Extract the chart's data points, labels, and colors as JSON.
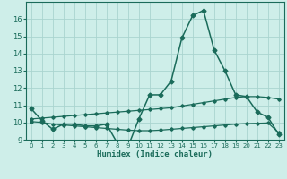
{
  "xlabel": "Humidex (Indice chaleur)",
  "bg_color": "#ceeee9",
  "grid_color": "#aad4cf",
  "line_color": "#1a6b5a",
  "xlim": [
    -0.5,
    23.5
  ],
  "ylim": [
    9,
    17
  ],
  "xticks": [
    0,
    1,
    2,
    3,
    4,
    5,
    6,
    7,
    8,
    9,
    10,
    11,
    12,
    13,
    14,
    15,
    16,
    17,
    18,
    19,
    20,
    21,
    22,
    23
  ],
  "yticks": [
    9,
    10,
    11,
    12,
    13,
    14,
    15,
    16
  ],
  "series1_x": [
    0,
    1,
    2,
    3,
    4,
    5,
    6,
    7,
    8,
    9,
    10,
    11,
    12,
    13,
    14,
    15,
    16,
    17,
    18,
    19,
    20,
    21,
    22,
    23
  ],
  "series1_y": [
    10.8,
    10.1,
    9.6,
    9.9,
    9.9,
    9.8,
    9.8,
    9.9,
    8.8,
    8.6,
    10.2,
    11.6,
    11.6,
    12.4,
    14.9,
    16.2,
    16.5,
    14.2,
    13.0,
    11.6,
    11.5,
    10.6,
    10.3,
    9.3
  ],
  "series2_x": [
    0,
    1,
    2,
    3,
    4,
    5,
    6,
    7,
    8,
    9,
    10,
    11,
    12,
    13,
    14,
    15,
    16,
    17,
    18,
    19,
    20,
    21,
    22,
    23
  ],
  "series2_y": [
    10.05,
    10.0,
    9.9,
    9.85,
    9.8,
    9.75,
    9.7,
    9.65,
    9.6,
    9.55,
    9.52,
    9.52,
    9.55,
    9.6,
    9.65,
    9.7,
    9.75,
    9.8,
    9.85,
    9.9,
    9.93,
    9.95,
    9.97,
    9.4
  ],
  "series3_x": [
    0,
    1,
    2,
    3,
    4,
    5,
    6,
    7,
    8,
    9,
    10,
    11,
    12,
    13,
    14,
    15,
    16,
    17,
    18,
    19,
    20,
    21,
    22,
    23
  ],
  "series3_y": [
    10.2,
    10.25,
    10.3,
    10.35,
    10.4,
    10.45,
    10.5,
    10.55,
    10.6,
    10.65,
    10.7,
    10.75,
    10.8,
    10.85,
    10.95,
    11.05,
    11.15,
    11.25,
    11.35,
    11.45,
    11.5,
    11.5,
    11.45,
    11.35
  ]
}
